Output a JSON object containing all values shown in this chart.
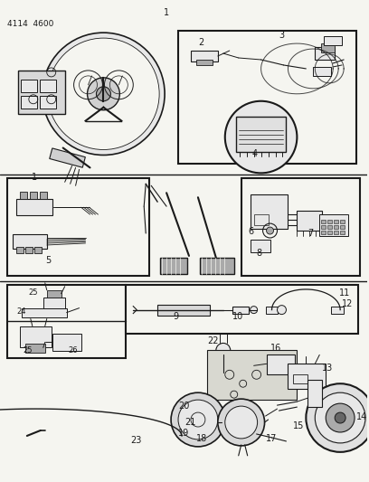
{
  "part_number": "4114  4600",
  "page_num": "1",
  "bg_color": "#f5f5f0",
  "line_color": "#1a1a1a",
  "figsize": [
    4.08,
    5.33
  ],
  "dpi": 100,
  "gray_fill": "#cccccc",
  "light_gray": "#e8e8e8",
  "med_gray": "#aaaaaa"
}
